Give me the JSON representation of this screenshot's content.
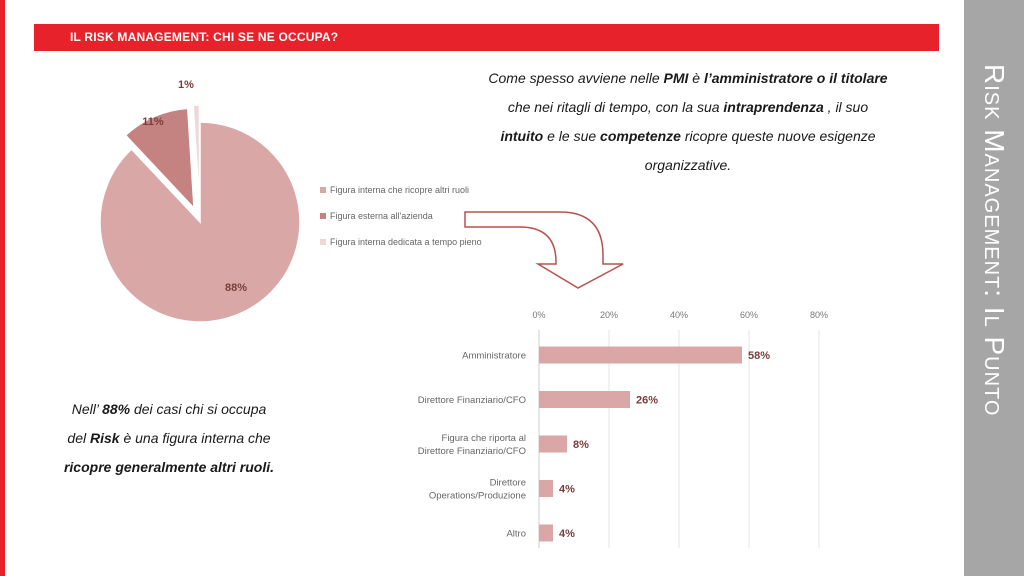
{
  "header": {
    "title": "IL RISK MANAGEMENT: CHI SE NE OCCUPA?"
  },
  "side": {
    "title": "Risk Management: Il Punto"
  },
  "intro": {
    "l1a": "Come spesso avviene nelle ",
    "l1b": "PMI",
    "l1c": " è ",
    "l1d": "l’amministratore o il titolare",
    "l2a": "che nei ritagli di tempo, con la sua ",
    "l2b": "intraprendenza",
    "l2c": " , il suo",
    "l3a": "intuito",
    "l3b": " e le sue ",
    "l3c": "competenze",
    "l3d": " ricopre queste nuove esigenze",
    "l4": "organizzative."
  },
  "note": {
    "l1a": "Nell’ ",
    "l1b": "88%",
    "l1c": " dei casi chi si occupa",
    "l2a": "del ",
    "l2b": "Risk",
    "l2c": " è una figura interna che",
    "l3": "ricopre generalmente altri ruoli."
  },
  "colors": {
    "accent": "#e8222a",
    "side_panel": "#a6a6a6",
    "pie_main": "#d9a8a6",
    "pie_mid": "#c48280",
    "pie_small": "#eed8d7",
    "bar": "#dba7a6",
    "arrow": "#b5524f"
  },
  "chart_data": [
    {
      "type": "pie",
      "slices": [
        {
          "label": "Figura interna che ricopre altri ruoli",
          "value": 88,
          "data_label": "88%"
        },
        {
          "label": "Figura esterna all'azienda",
          "value": 11,
          "data_label": "11%"
        },
        {
          "label": "Figura interna dedicata a tempo pieno",
          "value": 1,
          "data_label": "1%"
        }
      ],
      "legend": "right"
    },
    {
      "type": "bar",
      "orientation": "horizontal",
      "categories": [
        "Amministratore",
        "Direttore Finanziario/CFO",
        "Figura che riporta al Direttore Finanziario/CFO",
        "Direttore Operations/Produzione",
        "Altro"
      ],
      "category_lines": [
        [
          "Amministratore"
        ],
        [
          "Direttore Finanziario/CFO"
        ],
        [
          "Figura che riporta al",
          "Direttore Finanziario/CFO"
        ],
        [
          "Direttore",
          "Operations/Produzione"
        ],
        [
          "Altro"
        ]
      ],
      "values": [
        58,
        26,
        8,
        4,
        4
      ],
      "data_labels": [
        "58%",
        "26%",
        "8%",
        "4%",
        "4%"
      ],
      "xlim": [
        0,
        80
      ],
      "ticks": [
        0,
        20,
        40,
        60,
        80
      ],
      "tick_labels": [
        "0%",
        "20%",
        "40%",
        "60%",
        "80%"
      ],
      "grid": true
    }
  ]
}
